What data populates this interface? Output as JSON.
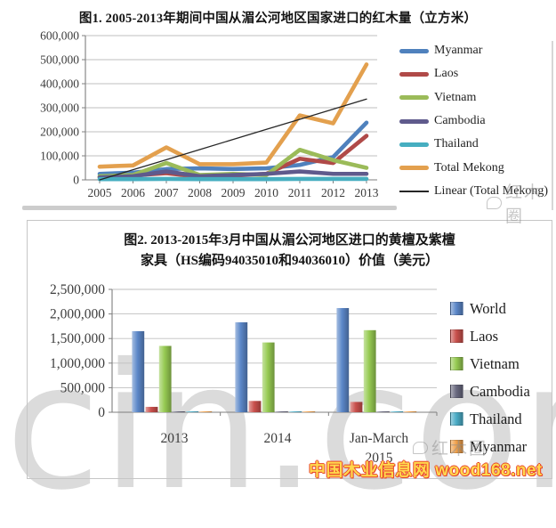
{
  "watermarks": {
    "site_large": "cin.com",
    "stamp": "红木圈",
    "footer": "中国木业信息网 wood168.net"
  },
  "colors": {
    "grid": "#bfbfbf",
    "axis": "#7f7f7f",
    "title_text": "#141414",
    "footer_fill": "#ffd84d",
    "footer_outline": "#e8442a"
  },
  "chart_data": [
    {
      "type": "line",
      "title": "图1. 2005-2013年期间中国从湄公河地区国家进口的红木量（立方米）",
      "x": [
        2005,
        2006,
        2007,
        2008,
        2009,
        2010,
        2011,
        2012,
        2013
      ],
      "xlabel": "",
      "ylabel": "",
      "ylim": [
        0,
        600000
      ],
      "ytick_step": 100000,
      "ytick_labels": [
        "0",
        "100,000",
        "200,000",
        "300,000",
        "400,000",
        "500,000",
        "600,000"
      ],
      "grid": true,
      "legend_position": "right",
      "series": [
        {
          "name": "Myanmar",
          "color": "#4f81bd",
          "values": [
            25000,
            30000,
            45000,
            48000,
            45000,
            48000,
            62000,
            95000,
            238000
          ]
        },
        {
          "name": "Laos",
          "color": "#b04a48",
          "values": [
            12000,
            18000,
            28000,
            12000,
            18000,
            25000,
            88000,
            70000,
            183000
          ]
        },
        {
          "name": "Vietnam",
          "color": "#9bbb59",
          "values": [
            15000,
            20000,
            70000,
            20000,
            25000,
            20000,
            125000,
            82000,
            50000
          ]
        },
        {
          "name": "Cambodia",
          "color": "#5f5a8c",
          "values": [
            10000,
            15000,
            35000,
            15000,
            20000,
            25000,
            35000,
            25000,
            25000
          ]
        },
        {
          "name": "Thailand",
          "color": "#46aec0",
          "values": [
            3000,
            3000,
            4000,
            3000,
            3000,
            3000,
            4000,
            4000,
            4000
          ]
        },
        {
          "name": "Total Mekong",
          "color": "#e3a04e",
          "values": [
            55000,
            60000,
            135000,
            65000,
            65000,
            72000,
            268000,
            235000,
            480000
          ]
        },
        {
          "name": "Linear (Total Mekong)",
          "color": "#262626",
          "kind": "trendline",
          "values": [
            0,
            42000,
            84000,
            126000,
            168000,
            210000,
            252000,
            294000,
            336000
          ]
        }
      ]
    },
    {
      "type": "bar",
      "title": "图2. 2013-2015年3月中国从湄公河地区进口的黄檀及紫檀家具（HS编码94035010和94036010）价值（美元）",
      "title_line1": "图2. 2013-2015年3月中国从湄公河地区进口的黄檀及紫檀",
      "title_line2": "家具（HS编码94035010和94036010）价值（美元）",
      "categories": [
        "2013",
        "2014",
        "Jan-March\n2015"
      ],
      "xlabel": "",
      "ylabel": "",
      "ylim": [
        0,
        2500000
      ],
      "ytick_step": 500000,
      "ytick_labels": [
        "0",
        "500,000",
        "1,000,000",
        "1,500,000",
        "2,000,000",
        "2,500,000"
      ],
      "grid": true,
      "legend_position": "right",
      "series": [
        {
          "name": "World",
          "color": "#5b87c8",
          "values": [
            1650000,
            1830000,
            2120000
          ]
        },
        {
          "name": "Laos",
          "color": "#c9504c",
          "values": [
            110000,
            230000,
            210000
          ]
        },
        {
          "name": "Vietnam",
          "color": "#96ca52",
          "values": [
            1350000,
            1420000,
            1670000
          ]
        },
        {
          "name": "Cambodia",
          "color": "#6a6a80",
          "values": [
            15000,
            10000,
            15000
          ]
        },
        {
          "name": "Thailand",
          "color": "#4bacc6",
          "values": [
            10000,
            10000,
            10000
          ]
        },
        {
          "name": "Myanmar",
          "color": "#f0a04a",
          "values": [
            4000,
            4000,
            4000
          ]
        }
      ]
    }
  ]
}
